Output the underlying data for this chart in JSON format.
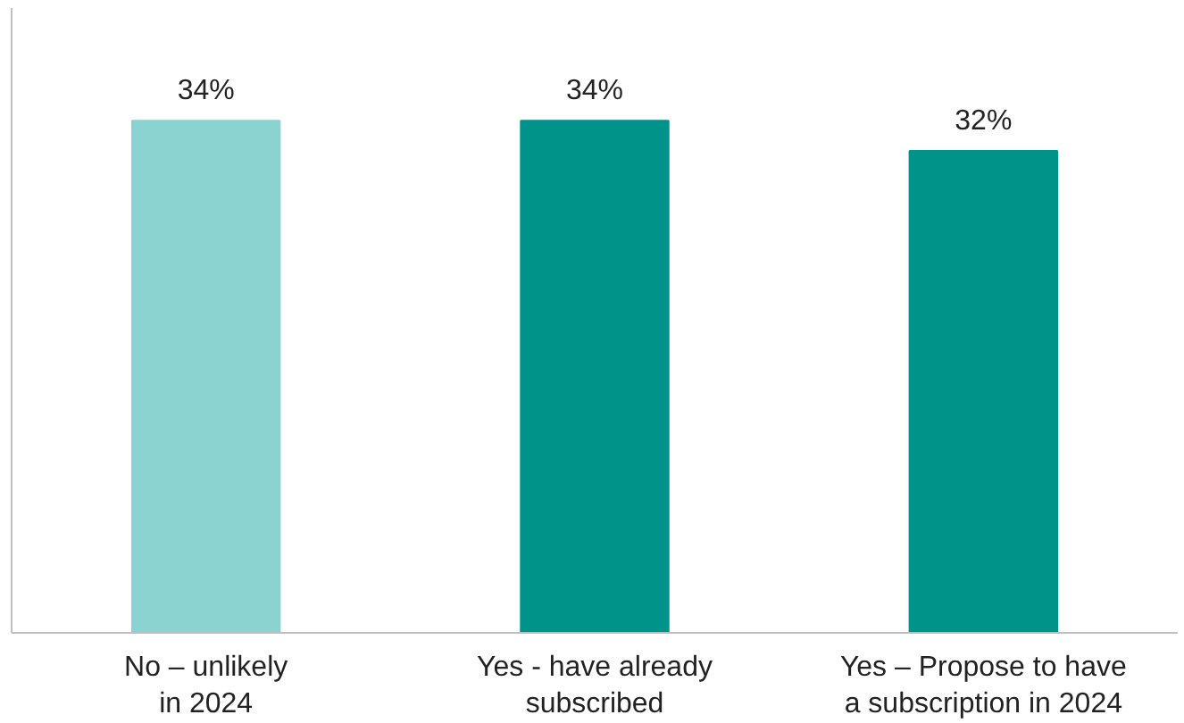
{
  "chart_data": {
    "type": "bar",
    "categories": [
      "No – unlikely\nin 2024",
      "Yes - have already\nsubscribed",
      "Yes – Propose to have\na subscription in 2024"
    ],
    "values": [
      34,
      34,
      32
    ],
    "value_labels": [
      "34%",
      "34%",
      "32%"
    ],
    "colors": [
      "#8ad3d1",
      "#00938a",
      "#00938a"
    ],
    "grid": false
  }
}
